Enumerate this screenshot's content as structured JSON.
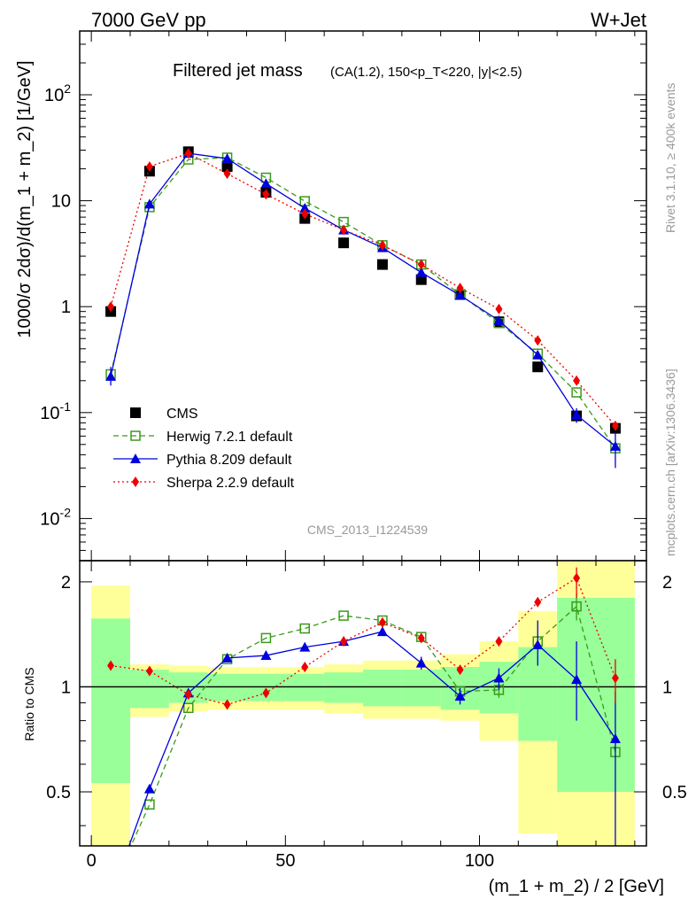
{
  "header": {
    "energy_label": "7000 GeV pp",
    "process_label": "W+Jet"
  },
  "side_labels": {
    "rivet": "Rivet 3.1.10, ≥ 400k events",
    "source": "mcplots.cern.ch [arXiv:1306.3436]"
  },
  "colors": {
    "cms": "#000000",
    "herwig": "#3a9a1a",
    "pythia": "#0000dd",
    "sherpa": "#ee0000",
    "band_inner": "#99ff99",
    "band_outer": "#ffff99"
  },
  "chart_data": [
    {
      "type": "scatter",
      "title": "Filtered jet mass",
      "subtitle": "(CA(1.2), 150<p_T<220, |y|<2.5)",
      "ylabel": "1000/σ 2dσ)/d(m_1 + m_2) [1/GeV]",
      "xlabel": "(m_1 + m_2) / 2 [GeV]",
      "yscale": "log",
      "ylim": [
        0.004,
        400
      ],
      "xlim": [
        -3,
        143
      ],
      "y_ticks": [
        "10^-2",
        "10^-1",
        "1",
        "10",
        "10^2"
      ],
      "annotation": "CMS_2013_I1224539",
      "legend_position": "lower-left",
      "x": [
        5,
        15,
        25,
        35,
        45,
        55,
        65,
        75,
        85,
        95,
        105,
        115,
        125,
        135
      ],
      "series": [
        {
          "name": "CMS",
          "key": "cms",
          "marker": "square-filled",
          "values": [
            0.9,
            19,
            29,
            21,
            12,
            6.8,
            4.0,
            2.5,
            1.8,
            1.3,
            0.72,
            0.27,
            0.093,
            0.071
          ]
        },
        {
          "name": "Herwig 7.2.1 default",
          "key": "herwig",
          "marker": "square-open",
          "line": "dashed",
          "values": [
            0.23,
            8.7,
            24.5,
            25.5,
            16.5,
            9.9,
            6.3,
            3.8,
            2.5,
            1.3,
            0.7,
            0.36,
            0.155,
            0.046
          ]
        },
        {
          "name": "Pythia 8.209 default",
          "key": "pythia",
          "marker": "triangle-filled",
          "line": "solid",
          "values": [
            0.22,
            9.3,
            28,
            25,
            14.5,
            8.5,
            5.3,
            3.6,
            2.1,
            1.28,
            0.74,
            0.35,
            0.095,
            0.048
          ]
        },
        {
          "name": "Sherpa 2.2.9 default",
          "key": "sherpa",
          "marker": "diamond-filled",
          "line": "dotted",
          "values": [
            1.0,
            21,
            28,
            18,
            11.5,
            7.5,
            5.3,
            3.8,
            2.5,
            1.5,
            0.95,
            0.48,
            0.2,
            0.075
          ]
        }
      ]
    },
    {
      "type": "line",
      "ylabel": "Ratio to CMS",
      "xlabel": "(m_1 + m_2) / 2 [GeV]",
      "yscale": "log",
      "ylim": [
        0.35,
        2.3
      ],
      "xlim": [
        -3,
        143
      ],
      "y_ticks": [
        "0.5",
        "1",
        "2"
      ],
      "x_ticks": [
        "0",
        "50",
        "100"
      ],
      "reference_line": 1,
      "x": [
        5,
        15,
        25,
        35,
        45,
        55,
        65,
        75,
        85,
        95,
        105,
        115,
        125,
        135
      ],
      "bands": {
        "inner": [
          [
            0.53,
            1.57
          ],
          [
            0.87,
            1.12
          ],
          [
            0.9,
            1.1
          ],
          [
            0.91,
            1.09
          ],
          [
            0.91,
            1.09
          ],
          [
            0.91,
            1.09
          ],
          [
            0.9,
            1.1
          ],
          [
            0.88,
            1.12
          ],
          [
            0.88,
            1.12
          ],
          [
            0.86,
            1.14
          ],
          [
            0.84,
            1.18
          ],
          [
            0.7,
            1.3
          ],
          [
            0.5,
            1.8
          ],
          [
            0.5,
            1.8
          ]
        ],
        "outer": [
          [
            0.3,
            1.95
          ],
          [
            0.82,
            1.16
          ],
          [
            0.85,
            1.15
          ],
          [
            0.86,
            1.14
          ],
          [
            0.86,
            1.14
          ],
          [
            0.86,
            1.14
          ],
          [
            0.84,
            1.16
          ],
          [
            0.81,
            1.19
          ],
          [
            0.81,
            1.19
          ],
          [
            0.8,
            1.24
          ],
          [
            0.7,
            1.35
          ],
          [
            0.38,
            1.65
          ],
          [
            0.3,
            2.3
          ],
          [
            0.3,
            2.3
          ]
        ]
      },
      "series": [
        {
          "name": "Herwig 7.2.1 default",
          "key": "herwig",
          "marker": "square-open",
          "line": "dashed",
          "values": [
            0.26,
            0.46,
            0.87,
            1.2,
            1.38,
            1.47,
            1.6,
            1.55,
            1.39,
            0.97,
            0.98,
            1.35,
            1.7,
            0.65
          ]
        },
        {
          "name": "Pythia 8.209 default",
          "key": "pythia",
          "marker": "triangle-filled",
          "line": "solid",
          "values": [
            0.25,
            0.51,
            0.96,
            1.21,
            1.23,
            1.3,
            1.35,
            1.44,
            1.17,
            0.94,
            1.06,
            1.32,
            1.05,
            0.71
          ]
        },
        {
          "name": "Sherpa 2.2.9 default",
          "key": "sherpa",
          "marker": "diamond-filled",
          "line": "dotted",
          "values": [
            1.15,
            1.11,
            0.95,
            0.89,
            0.96,
            1.14,
            1.35,
            1.53,
            1.38,
            1.12,
            1.35,
            1.75,
            2.05,
            1.06
          ]
        }
      ]
    }
  ]
}
